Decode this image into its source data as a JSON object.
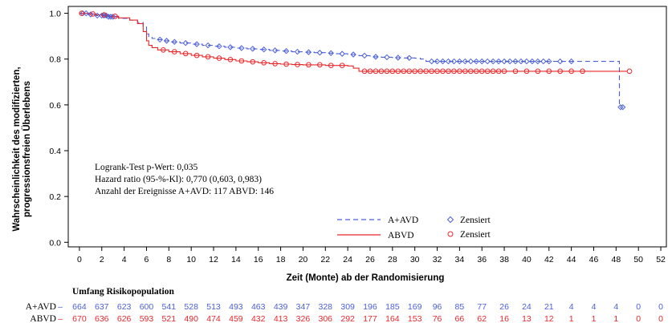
{
  "chart_data": {
    "type": "line",
    "ylabel_line1": "Wahrscheinlichkeit des modifizierten,",
    "ylabel_line2": "progressionsfreien Überlebens",
    "xlabel": "Zeit (Monte) ab der Randomisierung",
    "xlim": [
      -1,
      52.5
    ],
    "ylim": [
      -0.02,
      1.03
    ],
    "x_ticks": [
      0,
      2,
      4,
      6,
      8,
      10,
      12,
      14,
      16,
      18,
      20,
      22,
      24,
      26,
      28,
      30,
      32,
      34,
      36,
      38,
      40,
      42,
      44,
      46,
      48,
      50,
      52
    ],
    "y_ticks": [
      0.0,
      0.2,
      0.4,
      0.6,
      0.8,
      1.0
    ],
    "y_tick_labels": [
      "0.0",
      "0.2",
      "0.4",
      "0.6",
      "0.8",
      "1.0"
    ],
    "grid": false,
    "annotations": [
      "Logrank-Test p-Wert: 0,035",
      "Hazard ratio (95-%-Kl): 0,770 (0,603, 0,983)",
      "Anzahl der Ereignisse A+AVD: 117 ABVD: 146"
    ],
    "legend": {
      "placement": "bottom-center",
      "entries": [
        {
          "label": "A+AVD",
          "style": "dashed line",
          "color": "#4a5fd9"
        },
        {
          "label": "Zensiert",
          "style": "diamond marker",
          "color": "#4a5fd9"
        },
        {
          "label": "ABVD",
          "style": "solid line",
          "color": "#e8272a"
        },
        {
          "label": "Zensiert",
          "style": "circle marker",
          "color": "#e8272a"
        }
      ]
    },
    "series": [
      {
        "name": "A+AVD",
        "color": "#4a5fd9",
        "line": "dashed",
        "censor_marker": "diamond",
        "x": [
          0,
          0.8,
          1.5,
          2.5,
          3.5,
          4.5,
          5.2,
          5.7,
          6.0,
          6.2,
          6.5,
          7.0,
          7.5,
          8.0,
          9.0,
          10.0,
          11.0,
          12.0,
          13.0,
          14.0,
          15.0,
          16.0,
          17.0,
          18.0,
          19.0,
          20.0,
          21.0,
          22.0,
          23.0,
          24.0,
          25.0,
          26.0,
          27.0,
          28.0,
          29.0,
          30.0,
          30.5,
          31.0,
          48.2,
          48.3
        ],
        "y": [
          1.0,
          0.995,
          0.99,
          0.985,
          0.978,
          0.97,
          0.96,
          0.94,
          0.91,
          0.895,
          0.89,
          0.885,
          0.88,
          0.875,
          0.87,
          0.865,
          0.86,
          0.856,
          0.852,
          0.848,
          0.845,
          0.842,
          0.838,
          0.835,
          0.832,
          0.83,
          0.828,
          0.826,
          0.823,
          0.82,
          0.815,
          0.81,
          0.808,
          0.806,
          0.805,
          0.804,
          0.8,
          0.79,
          0.79,
          0.59
        ],
        "censored_x": [
          0.3,
          0.6,
          1.0,
          1.6,
          2.0,
          2.2,
          2.4,
          2.6,
          2.8,
          3.0,
          7.2,
          7.8,
          8.5,
          9.5,
          10.5,
          11.5,
          12.5,
          13.5,
          14.5,
          15.5,
          16.5,
          17.5,
          18.5,
          19.5,
          20.5,
          21.5,
          22.5,
          23.5,
          24.5,
          25.5,
          26.5,
          27.5,
          28.5,
          29.5,
          31.5,
          32.0,
          32.5,
          33.0,
          33.5,
          34.0,
          34.5,
          35.0,
          35.5,
          36.0,
          36.5,
          37.0,
          37.5,
          38.0,
          38.5,
          39.0,
          39.5,
          40.0,
          40.5,
          41.0,
          41.5,
          42.0,
          43.0,
          44.0,
          48.4,
          48.6
        ]
      },
      {
        "name": "ABVD",
        "color": "#e8272a",
        "line": "solid",
        "censor_marker": "circle",
        "x": [
          0,
          0.8,
          1.5,
          2.5,
          3.5,
          4.5,
          5.2,
          5.7,
          6.0,
          6.2,
          6.5,
          7.0,
          8.0,
          9.0,
          10.0,
          11.0,
          12.0,
          13.0,
          14.0,
          15.0,
          16.0,
          17.0,
          18.0,
          19.0,
          20.0,
          22.0,
          24.0,
          24.5,
          25.0,
          30.0,
          35.0,
          40.0,
          45.0,
          49.0
        ],
        "y": [
          1.0,
          0.997,
          0.993,
          0.987,
          0.98,
          0.97,
          0.955,
          0.92,
          0.88,
          0.86,
          0.85,
          0.84,
          0.832,
          0.824,
          0.816,
          0.81,
          0.804,
          0.798,
          0.792,
          0.788,
          0.784,
          0.78,
          0.778,
          0.776,
          0.775,
          0.772,
          0.77,
          0.76,
          0.747,
          0.747,
          0.747,
          0.747,
          0.747,
          0.747
        ],
        "censored_x": [
          0.2,
          1.2,
          2.2,
          3.2,
          7.5,
          8.5,
          9.5,
          10.5,
          11.5,
          12.5,
          13.5,
          14.5,
          15.5,
          16.5,
          17.5,
          18.5,
          19.5,
          20.5,
          21.5,
          22.5,
          23.5,
          25.5,
          26.0,
          26.5,
          27.0,
          27.5,
          28.0,
          28.5,
          29.0,
          29.5,
          30.0,
          30.5,
          31.0,
          31.5,
          32.0,
          32.5,
          33.0,
          33.5,
          34.0,
          34.5,
          35.0,
          35.5,
          36.0,
          36.5,
          37.0,
          37.5,
          38.0,
          39.0,
          40.0,
          41.0,
          42.0,
          43.0,
          44.0,
          45.0,
          49.2
        ]
      }
    ],
    "risk_table": {
      "title": "Umfang Risikopopulation",
      "rows": [
        {
          "label": "A+AVD",
          "color": "#4a5fd9",
          "values": [
            "664",
            "637",
            "623",
            "600",
            "541",
            "528",
            "513",
            "493",
            "463",
            "439",
            "347",
            "328",
            "309",
            "196",
            "185",
            "169",
            "96",
            "85",
            "77",
            "26",
            "24",
            "21",
            "4",
            "4",
            "4",
            "0",
            "0"
          ]
        },
        {
          "label": "ABVD",
          "color": "#e8272a",
          "values": [
            "670",
            "636",
            "626",
            "593",
            "521",
            "490",
            "474",
            "459",
            "432",
            "413",
            "326",
            "306",
            "292",
            "177",
            "164",
            "153",
            "76",
            "66",
            "62",
            "16",
            "13",
            "12",
            "1",
            "1",
            "1",
            "0",
            "0"
          ]
        }
      ]
    }
  }
}
